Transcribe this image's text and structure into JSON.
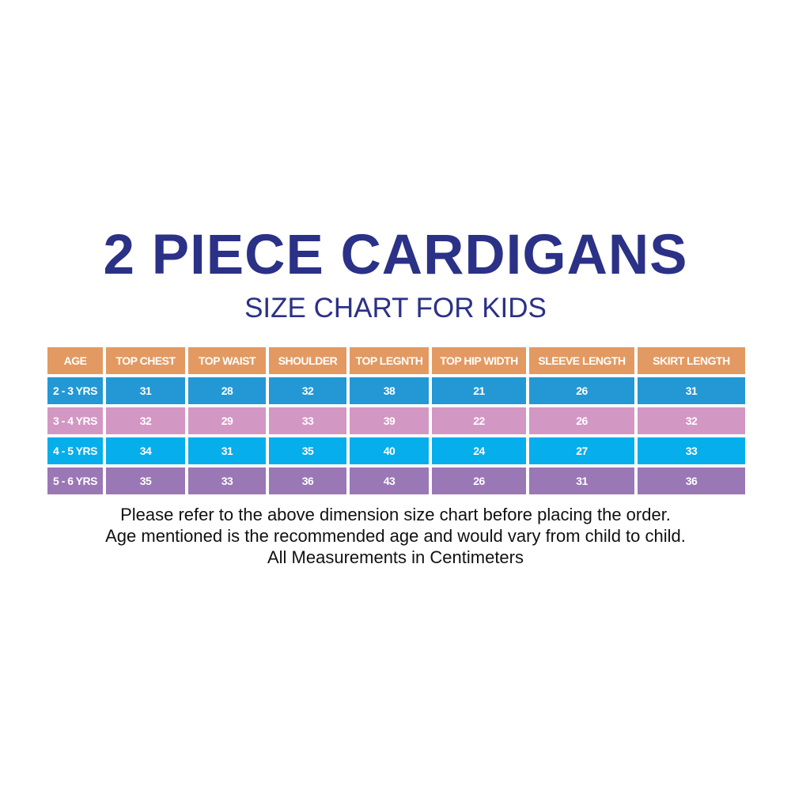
{
  "title": "2 PIECE CARDIGANS",
  "subtitle": "SIZE CHART FOR KIDS",
  "colors": {
    "title": "#2B3187",
    "header": "#E29A62",
    "row_colors": [
      "#2398D5",
      "#D397C4",
      "#06AEEB",
      "#9A77B5"
    ]
  },
  "table": {
    "headers": [
      "AGE",
      "TOP CHEST",
      "TOP WAIST",
      "SHOULDER",
      "TOP LEGNTH",
      "TOP HIP WIDTH",
      "SLEEVE LENGTH",
      "SKIRT LENGTH"
    ],
    "rows": [
      [
        "2 - 3 YRS",
        "31",
        "28",
        "32",
        "38",
        "21",
        "26",
        "31"
      ],
      [
        "3 - 4 YRS",
        "32",
        "29",
        "33",
        "39",
        "22",
        "26",
        "32"
      ],
      [
        "4 - 5 YRS",
        "34",
        "31",
        "35",
        "40",
        "24",
        "27",
        "33"
      ],
      [
        "5 - 6 YRS",
        "35",
        "33",
        "36",
        "43",
        "26",
        "31",
        "36"
      ]
    ]
  },
  "notes": [
    "Please refer to the above dimension size chart before placing the order.",
    "Age mentioned is the recommended age and would vary from child to child.",
    "All Measurements in Centimeters"
  ]
}
